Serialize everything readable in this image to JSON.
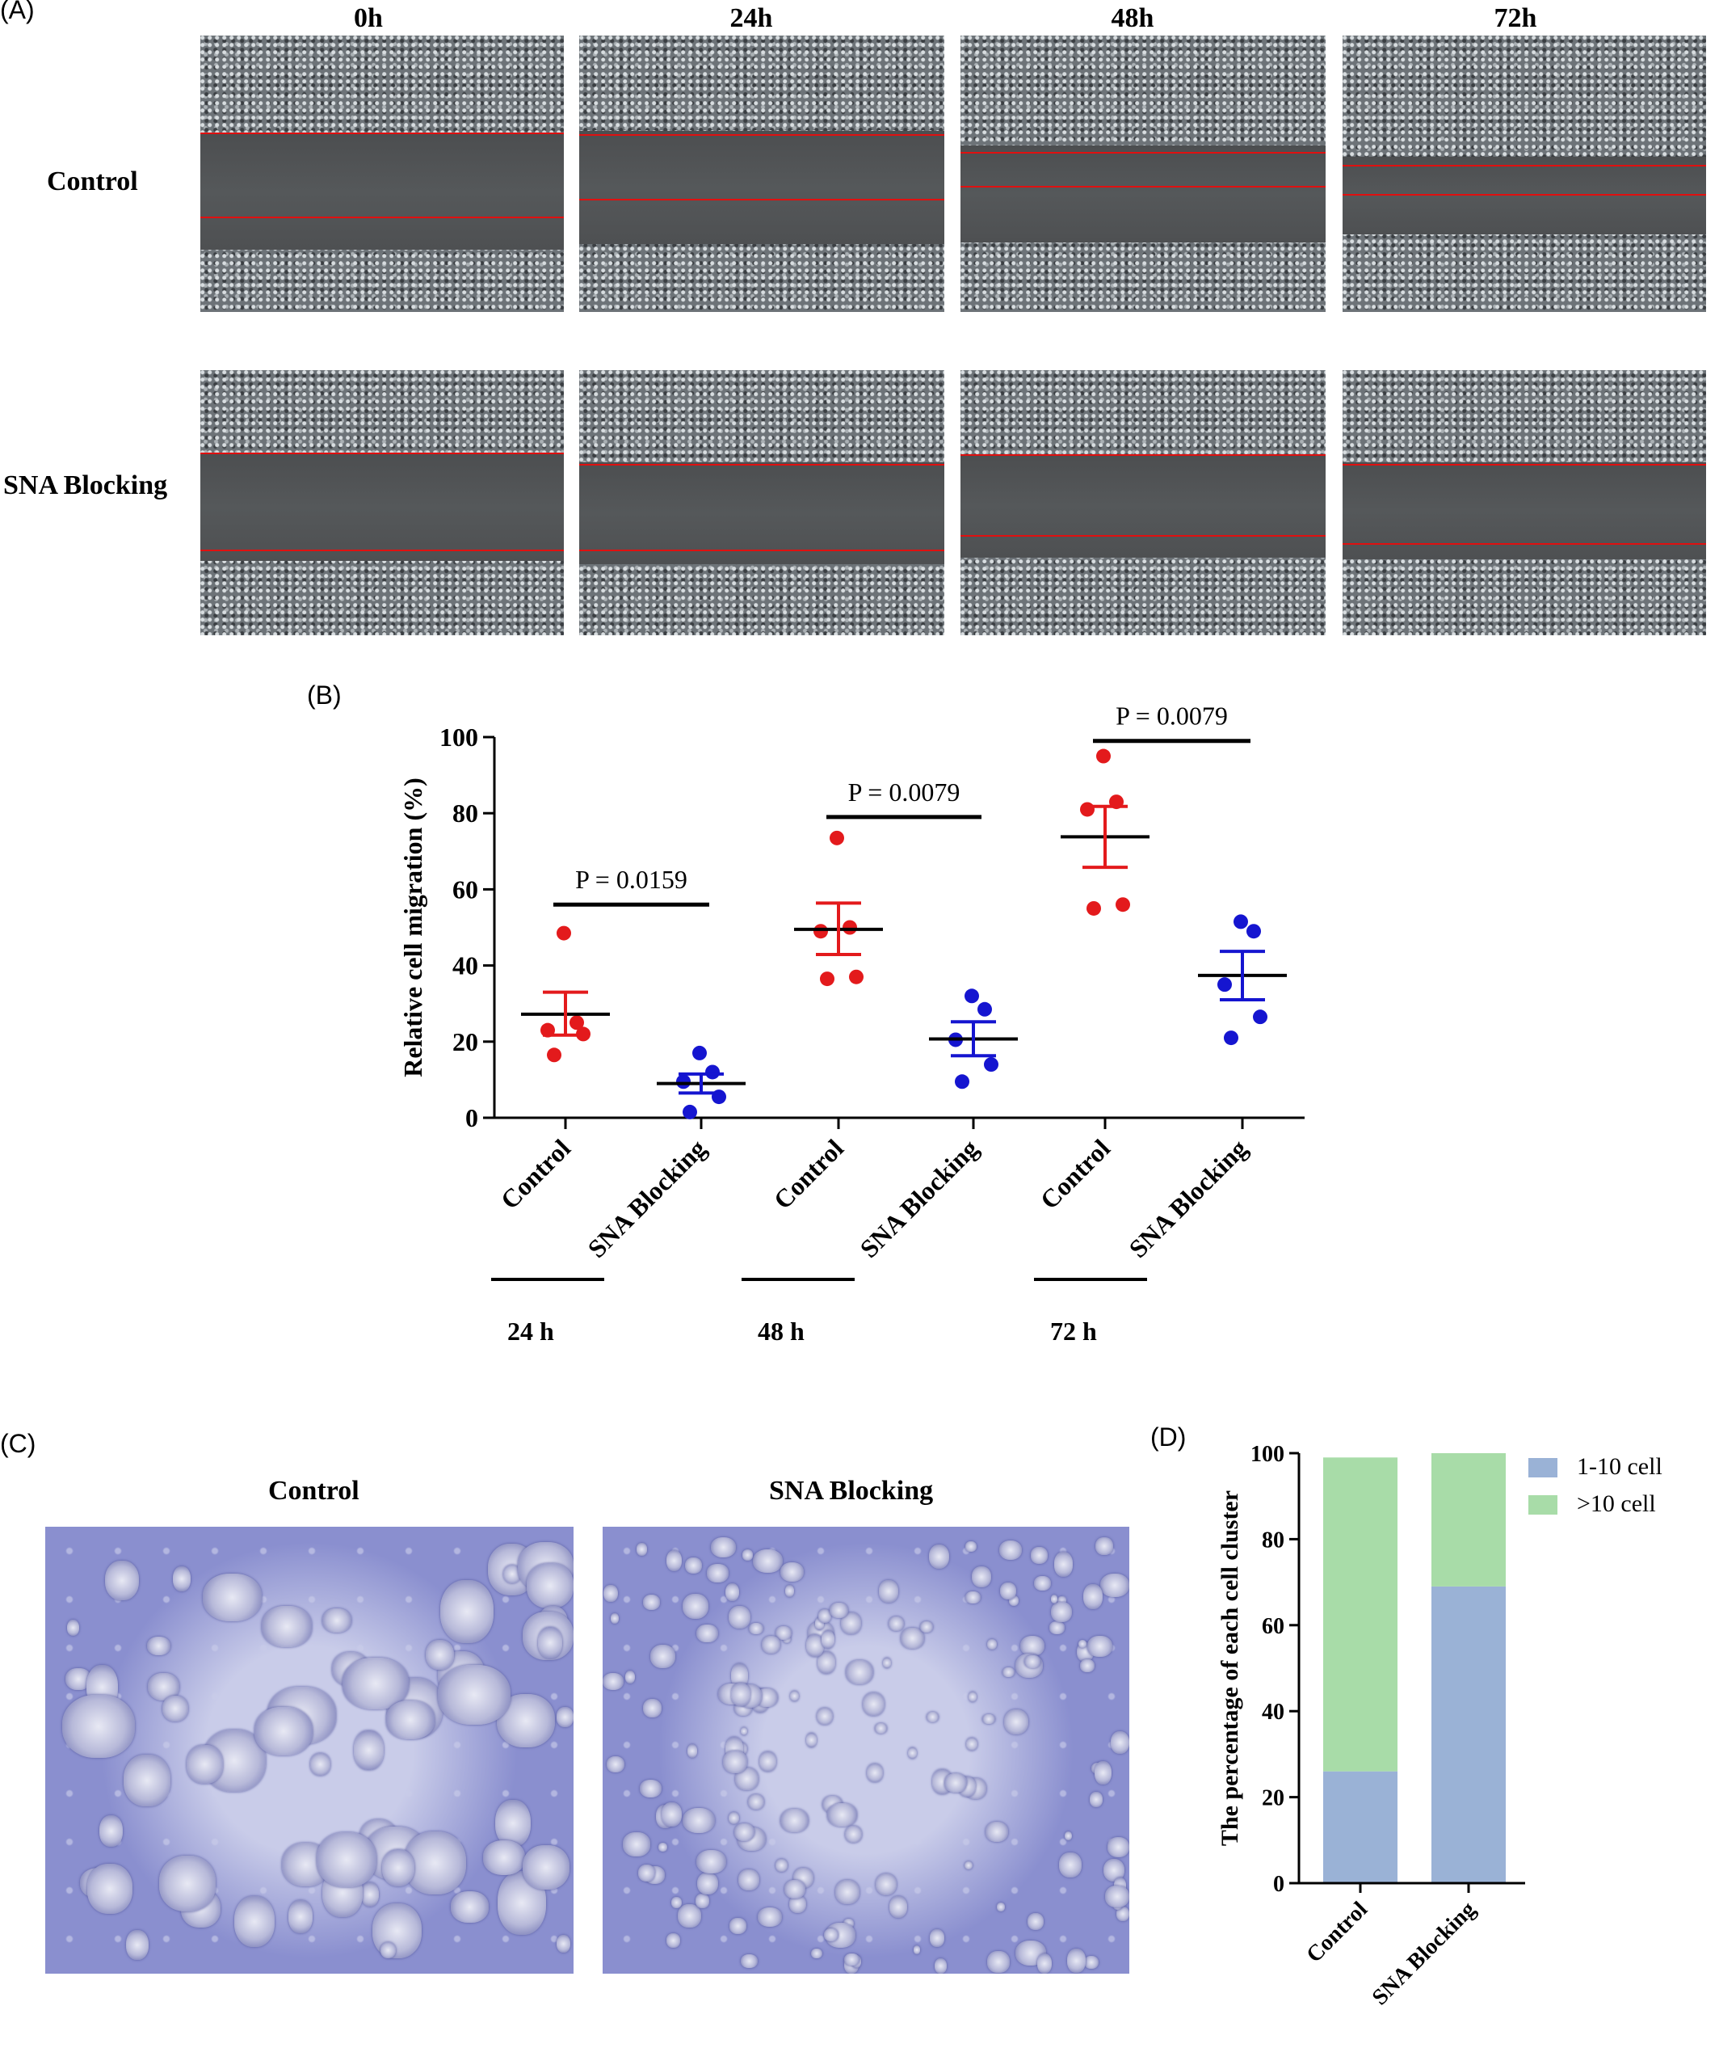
{
  "panel_labels": {
    "a": "(A)",
    "b": "(B)",
    "c": "(C)",
    "d": "(D)"
  },
  "panel_a": {
    "timepoints": [
      "0h",
      "24h",
      "48h",
      "72h"
    ],
    "rows": [
      "Control",
      "SNA Blocking"
    ]
  },
  "panel_c": {
    "titles": [
      "Control",
      "SNA Blocking"
    ]
  },
  "chart_data": [
    {
      "panel": "B",
      "type": "scatter",
      "ylabel": "Relative cell migration (%)",
      "ylim": [
        0,
        100
      ],
      "yticks": [
        0,
        20,
        40,
        60,
        80,
        100
      ],
      "categories": [
        "Control",
        "SNA Blocking",
        "Control",
        "SNA Blocking",
        "Control",
        "SNA Blocking"
      ],
      "group_labels": [
        "24 h",
        "48 h",
        "72 h"
      ],
      "series": [
        {
          "name": "Control",
          "color": "#e31a1c",
          "points": [
            [
              0,
              48.5
            ],
            [
              0,
              25
            ],
            [
              0,
              23
            ],
            [
              0,
              22
            ],
            [
              0,
              16.5
            ]
          ],
          "mean": 27.2,
          "sem_low": 21.7,
          "sem_high": 33
        },
        {
          "name": "SNA Blocking",
          "color": "#1515d0",
          "points": [
            [
              1,
              17
            ],
            [
              1,
              12
            ],
            [
              1,
              9.5
            ],
            [
              1,
              5.5
            ],
            [
              1,
              1.5
            ]
          ],
          "mean": 9,
          "sem_low": 6.5,
          "sem_high": 11.5
        },
        {
          "name": "Control",
          "color": "#e31a1c",
          "points": [
            [
              2,
              73.5
            ],
            [
              2,
              50
            ],
            [
              2,
              49
            ],
            [
              2,
              37
            ],
            [
              2,
              36.5
            ]
          ],
          "mean": 49.5,
          "sem_low": 42.9,
          "sem_high": 56.4
        },
        {
          "name": "SNA Blocking",
          "color": "#1515d0",
          "points": [
            [
              3,
              32
            ],
            [
              3,
              28.5
            ],
            [
              3,
              20.5
            ],
            [
              3,
              14
            ],
            [
              3,
              9.5
            ]
          ],
          "mean": 20.7,
          "sem_low": 16.3,
          "sem_high": 25.2
        },
        {
          "name": "Control",
          "color": "#e31a1c",
          "points": [
            [
              4,
              95
            ],
            [
              4,
              83
            ],
            [
              4,
              81
            ],
            [
              4,
              56
            ],
            [
              4,
              55
            ]
          ],
          "mean": 73.8,
          "sem_low": 65.8,
          "sem_high": 81.8
        },
        {
          "name": "SNA Blocking",
          "color": "#1515d0",
          "points": [
            [
              5,
              51.5
            ],
            [
              5,
              49
            ],
            [
              5,
              35
            ],
            [
              5,
              26.5
            ],
            [
              5,
              21
            ]
          ],
          "mean": 37.4,
          "sem_low": 31,
          "sem_high": 43.7
        }
      ],
      "significance": [
        {
          "from": 0,
          "to": 1,
          "y": 56,
          "text": "P = 0.0159"
        },
        {
          "from": 2,
          "to": 3,
          "y": 79,
          "text": "P = 0.0079"
        },
        {
          "from": 4,
          "to": 5,
          "y": 99,
          "text": "P = 0.0079"
        }
      ]
    },
    {
      "panel": "D",
      "type": "bar",
      "stacked": true,
      "ylabel": "The percentage of each cell cluster",
      "ylim": [
        0,
        100
      ],
      "yticks": [
        0,
        20,
        40,
        60,
        80,
        100
      ],
      "categories": [
        "Control",
        "SNA Blocking"
      ],
      "series": [
        {
          "name": "1-10 cell",
          "color": "#9ab2d6",
          "values": [
            26,
            69
          ]
        },
        {
          "name": ">10 cell",
          "color": "#a8dca8",
          "values": [
            73,
            31
          ]
        }
      ],
      "legend": "top-right"
    }
  ]
}
